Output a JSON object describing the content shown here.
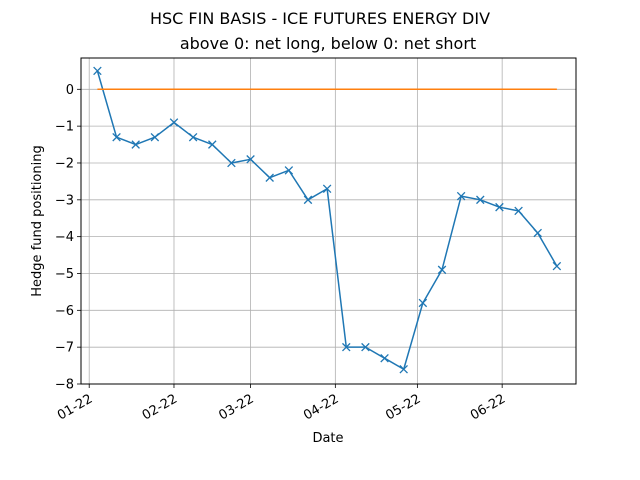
{
  "chart_data": {
    "type": "line",
    "title": "HSC FIN BASIS - ICE FUTURES ENERGY DIV",
    "subtitle": "above 0: net long, below 0: net short",
    "xlabel": "Date",
    "ylabel": "Hedge fund positioning",
    "x": [
      "2022-01-04",
      "2022-01-11",
      "2022-01-18",
      "2022-01-25",
      "2022-02-01",
      "2022-02-08",
      "2022-02-15",
      "2022-02-22",
      "2022-03-01",
      "2022-03-08",
      "2022-03-15",
      "2022-03-22",
      "2022-03-29",
      "2022-04-05",
      "2022-04-12",
      "2022-04-19",
      "2022-04-26",
      "2022-05-03",
      "2022-05-10",
      "2022-05-17",
      "2022-05-24",
      "2022-05-31",
      "2022-06-07",
      "2022-06-14",
      "2022-06-21"
    ],
    "xlim": [
      "2021-12-29",
      "2022-06-28"
    ],
    "xticks": [
      {
        "date": "2022-01-01",
        "label": "01-22"
      },
      {
        "date": "2022-02-01",
        "label": "02-22"
      },
      {
        "date": "2022-03-01",
        "label": "03-22"
      },
      {
        "date": "2022-04-01",
        "label": "04-22"
      },
      {
        "date": "2022-05-01",
        "label": "05-22"
      },
      {
        "date": "2022-06-01",
        "label": "06-22"
      }
    ],
    "yticks": [
      0,
      -1,
      -2,
      -3,
      -4,
      -5,
      -6,
      -7,
      -8
    ],
    "ylim": [
      -8,
      0.85
    ],
    "grid": true,
    "series": [
      {
        "values": [
          0.5,
          -1.3,
          -1.5,
          -1.3,
          -0.9,
          -1.3,
          -1.5,
          -2.0,
          -1.9,
          -2.4,
          -2.2,
          -3.0,
          -2.7,
          -7.0,
          -7.0,
          -7.3,
          -7.6,
          -5.8,
          -4.9,
          -2.9,
          -3.0,
          -3.2,
          -3.3,
          -3.9,
          -4.8
        ],
        "color": "#1f77b4",
        "marker": "x"
      },
      {
        "values": [
          0,
          0,
          0,
          0,
          0,
          0,
          0,
          0,
          0,
          0,
          0,
          0,
          0,
          0,
          0,
          0,
          0,
          0,
          0,
          0,
          0,
          0,
          0,
          0,
          0
        ],
        "color": "#ff7f0e",
        "marker": "none"
      }
    ]
  }
}
